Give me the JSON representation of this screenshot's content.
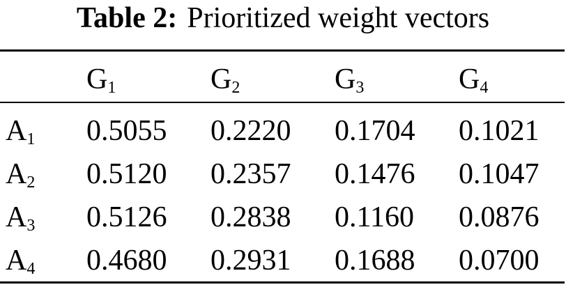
{
  "caption": {
    "label": "Table 2:",
    "text": "Prioritized weight vectors"
  },
  "table": {
    "columns": [
      {
        "base": "G",
        "sub": "1"
      },
      {
        "base": "G",
        "sub": "2"
      },
      {
        "base": "G",
        "sub": "3"
      },
      {
        "base": "G",
        "sub": "4"
      }
    ],
    "rows": [
      {
        "base": "A",
        "sub": "1",
        "values": [
          "0.5055",
          "0.2220",
          "0.1704",
          "0.1021"
        ]
      },
      {
        "base": "A",
        "sub": "2",
        "values": [
          "0.5120",
          "0.2357",
          "0.1476",
          "0.1047"
        ]
      },
      {
        "base": "A",
        "sub": "3",
        "values": [
          "0.5126",
          "0.2838",
          "0.1160",
          "0.0876"
        ]
      },
      {
        "base": "A",
        "sub": "4",
        "values": [
          "0.4680",
          "0.2931",
          "0.1688",
          "0.0700"
        ]
      }
    ]
  }
}
